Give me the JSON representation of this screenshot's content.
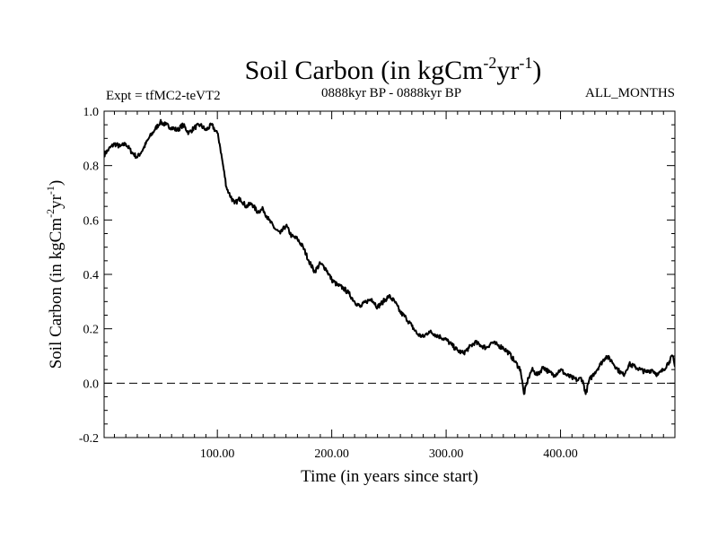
{
  "chart_data": {
    "type": "line",
    "title_main": "Soil Carbon (in kgCm",
    "title_sup1": "-2",
    "title_mid": "yr",
    "title_sup2": "-1",
    "title_end": ")",
    "expt": "Expt = tfMC2-teVT2",
    "period": "0888kyr BP - 0888kyr BP",
    "months": "ALL_MONTHS",
    "xlabel": "Time (in years since start)",
    "ylabel_main": "Soil Carbon (in kgCm",
    "ylabel_sup1": "-2",
    "ylabel_mid": "yr",
    "ylabel_sup2": "-1",
    "ylabel_end": ")",
    "xlim": [
      1,
      500
    ],
    "ylim": [
      -0.2,
      1.0
    ],
    "x_ticks": [
      100,
      200,
      300,
      400
    ],
    "x_tick_labels": [
      "100.00",
      "200.00",
      "300.00",
      "400.00"
    ],
    "y_ticks": [
      -0.2,
      0.0,
      0.2,
      0.4,
      0.6,
      0.8,
      1.0
    ],
    "y_tick_labels": [
      "-0.2",
      "0.0",
      "0.2",
      "0.4",
      "0.6",
      "0.8",
      "1.0"
    ],
    "reference_line": {
      "y": 0.0,
      "style": "dashed"
    },
    "series": [
      {
        "name": "Soil Carbon",
        "x": [
          1,
          5,
          10,
          15,
          20,
          25,
          30,
          35,
          40,
          45,
          50,
          55,
          60,
          65,
          70,
          75,
          80,
          85,
          90,
          95,
          98,
          100,
          102,
          105,
          108,
          110,
          115,
          120,
          125,
          130,
          135,
          140,
          145,
          150,
          155,
          160,
          165,
          170,
          175,
          180,
          185,
          190,
          195,
          200,
          205,
          210,
          215,
          220,
          225,
          230,
          235,
          240,
          245,
          250,
          255,
          260,
          265,
          270,
          275,
          280,
          285,
          290,
          295,
          300,
          305,
          310,
          315,
          320,
          325,
          330,
          335,
          340,
          345,
          350,
          355,
          360,
          365,
          368,
          372,
          375,
          380,
          385,
          390,
          395,
          400,
          405,
          410,
          415,
          418,
          420,
          422,
          425,
          430,
          435,
          440,
          445,
          450,
          455,
          460,
          465,
          470,
          475,
          480,
          485,
          490,
          495,
          498,
          500
        ],
        "y": [
          0.84,
          0.86,
          0.88,
          0.87,
          0.88,
          0.85,
          0.83,
          0.86,
          0.9,
          0.93,
          0.96,
          0.95,
          0.94,
          0.93,
          0.95,
          0.92,
          0.94,
          0.95,
          0.93,
          0.95,
          0.93,
          0.92,
          0.88,
          0.8,
          0.72,
          0.7,
          0.66,
          0.68,
          0.65,
          0.66,
          0.63,
          0.64,
          0.6,
          0.57,
          0.55,
          0.58,
          0.54,
          0.53,
          0.5,
          0.45,
          0.41,
          0.44,
          0.42,
          0.38,
          0.36,
          0.35,
          0.33,
          0.3,
          0.28,
          0.3,
          0.31,
          0.28,
          0.3,
          0.32,
          0.3,
          0.26,
          0.24,
          0.21,
          0.18,
          0.17,
          0.19,
          0.18,
          0.17,
          0.16,
          0.14,
          0.12,
          0.11,
          0.13,
          0.15,
          0.14,
          0.13,
          0.15,
          0.14,
          0.13,
          0.11,
          0.08,
          0.05,
          -0.04,
          0.02,
          0.05,
          0.03,
          0.06,
          0.04,
          0.03,
          0.05,
          0.03,
          0.02,
          0.01,
          0.02,
          0.0,
          -0.04,
          0.01,
          0.04,
          0.07,
          0.1,
          0.08,
          0.05,
          0.03,
          0.07,
          0.06,
          0.05,
          0.04,
          0.05,
          0.03,
          0.05,
          0.08,
          0.1,
          0.06
        ]
      }
    ]
  }
}
